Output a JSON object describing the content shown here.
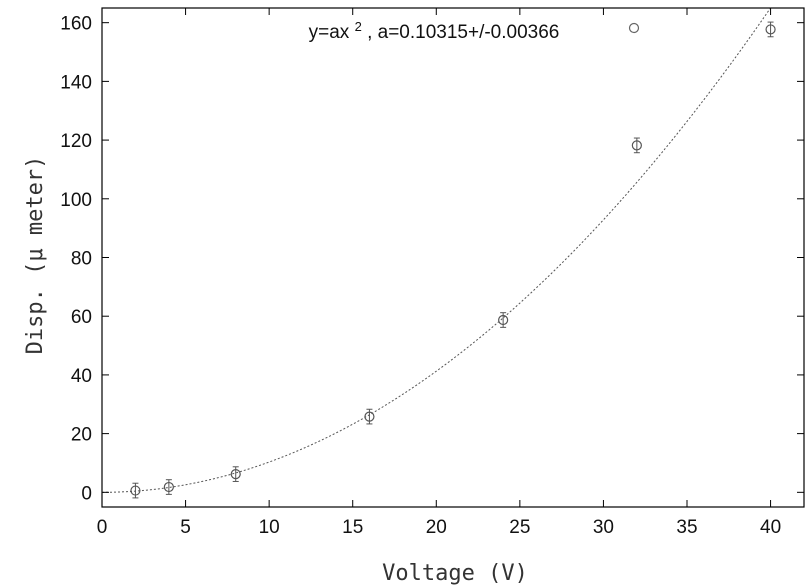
{
  "chart_data": {
    "type": "scatter",
    "title": "",
    "xlabel": "Voltage (V)",
    "ylabel": "Disp. (μ meter)",
    "xlim": [
      0,
      42
    ],
    "ylim": [
      -5,
      165
    ],
    "xticks": [
      0,
      5,
      10,
      15,
      20,
      25,
      30,
      35,
      40
    ],
    "yticks": [
      0,
      20,
      40,
      60,
      80,
      100,
      120,
      140,
      160
    ],
    "grid": false,
    "legend_placement": "top-right",
    "legend": {
      "label_prefix": "y=ax",
      "label_exponent": "2",
      "label_suffix": ", a=0.10315+/-0.00366"
    },
    "series": [
      {
        "marker": "open-circle",
        "x": [
          2,
          4,
          8,
          16,
          24,
          32,
          40
        ],
        "y": [
          0.6,
          1.8,
          6.2,
          25.8,
          58.7,
          118.2,
          157.7
        ],
        "y_error": [
          2.5,
          2.5,
          2.5,
          2.5,
          2.5,
          2.5,
          2.5
        ]
      }
    ],
    "fit": {
      "function": "a*x^2",
      "a": 0.10315,
      "line_style": "dotted"
    }
  }
}
